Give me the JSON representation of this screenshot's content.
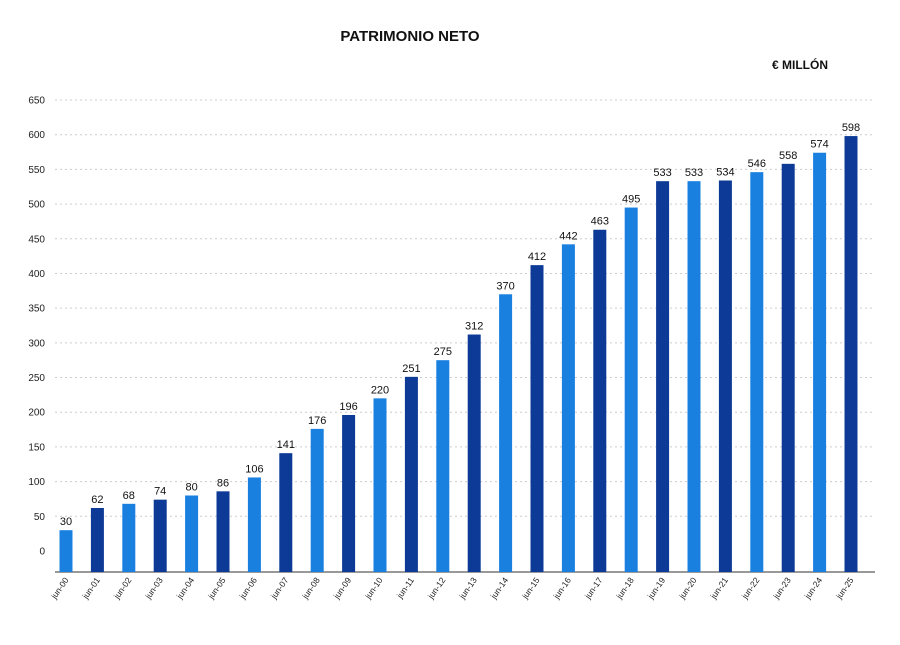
{
  "chart_data": {
    "type": "bar",
    "title": "PATRIMONIO NETO",
    "unit_label": "€ MILLÓN",
    "categories": [
      "jun-00",
      "jun-01",
      "jun-02",
      "jun-03",
      "jun-04",
      "jun-05",
      "jun-06",
      "jun-07",
      "jun-08",
      "jun-09",
      "jun-10",
      "jun-11",
      "jun-12",
      "jun-13",
      "jun-14",
      "jun-15",
      "jun-16",
      "jun-17",
      "jun-18",
      "jun-19",
      "jun-20",
      "jun-21",
      "jun-22",
      "jun-23",
      "jun-24",
      "jun-25"
    ],
    "values": [
      30,
      62,
      68,
      74,
      80,
      86,
      106,
      141,
      176,
      196,
      220,
      251,
      275,
      312,
      370,
      412,
      442,
      463,
      495,
      533,
      533,
      534,
      546,
      558,
      574,
      598
    ],
    "ylim": [
      0,
      650
    ],
    "yticks": [
      0,
      50,
      100,
      150,
      200,
      250,
      300,
      350,
      400,
      450,
      500,
      550,
      600,
      650
    ],
    "grid": true,
    "colors": {
      "light": "#1a80e0",
      "dark": "#0c3a96",
      "grid": "#cccccc",
      "axis": "#333333"
    },
    "bar_color_pattern": [
      "light",
      "dark",
      "light",
      "dark",
      "light",
      "dark",
      "light",
      "dark",
      "light",
      "dark",
      "light",
      "dark",
      "light",
      "dark",
      "light",
      "dark",
      "light",
      "dark",
      "light",
      "dark",
      "light",
      "dark",
      "light",
      "dark",
      "light",
      "dark"
    ]
  }
}
